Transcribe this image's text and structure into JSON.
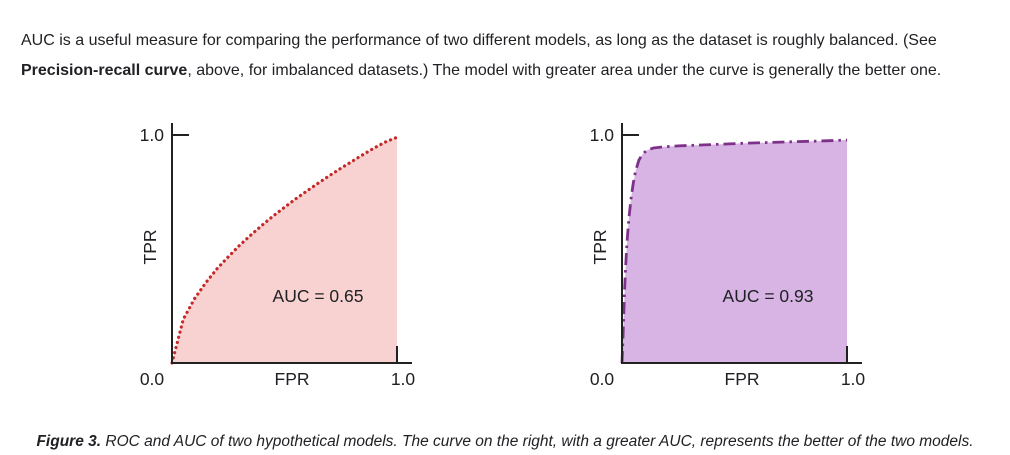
{
  "intro": {
    "line1": "AUC is a useful measure for comparing the performance of two different models, as long as the dataset is roughly balanced. (See",
    "line2_bold": "Precision-recall curve",
    "line2_rest": ", above, for imbalanced datasets.) The model with greater area under the curve is generally the better one."
  },
  "caption": {
    "label": "Figure 3.",
    "text": " ROC and AUC of two hypothetical models. The curve on the right, with a greater AUC, represents the better of the two models."
  },
  "colors": {
    "axis": "#212121",
    "text": "#202124",
    "left_curve": "#c62828",
    "left_fill": "#f8d2d0",
    "right_curve": "#7d3189",
    "right_fill": "#d7b4e4"
  },
  "chart_data": [
    {
      "type": "area",
      "title": "",
      "xlabel": "FPR",
      "ylabel": "TPR",
      "xlim": [
        0.0,
        1.0
      ],
      "ylim": [
        0.0,
        1.0
      ],
      "grid": false,
      "x_ticks": [
        {
          "value": 0.0,
          "label": "0.0"
        },
        {
          "value": 1.0,
          "label": "1.0"
        }
      ],
      "y_ticks": [
        {
          "value": 1.0,
          "label": "1.0"
        }
      ],
      "annotation": "AUC = 0.65",
      "auc": 0.65,
      "line_style": "dotted",
      "line_color": "#c62828",
      "fill_color": "#f8d2d0",
      "points": [
        [
          0.0,
          0.0
        ],
        [
          0.05,
          0.192
        ],
        [
          0.1,
          0.282
        ],
        [
          0.15,
          0.352
        ],
        [
          0.2,
          0.413
        ],
        [
          0.25,
          0.466
        ],
        [
          0.3,
          0.516
        ],
        [
          0.35,
          0.561
        ],
        [
          0.4,
          0.604
        ],
        [
          0.45,
          0.645
        ],
        [
          0.5,
          0.683
        ],
        [
          0.55,
          0.72
        ],
        [
          0.6,
          0.755
        ],
        [
          0.65,
          0.789
        ],
        [
          0.7,
          0.822
        ],
        [
          0.75,
          0.854
        ],
        [
          0.8,
          0.884
        ],
        [
          0.85,
          0.915
        ],
        [
          0.9,
          0.944
        ],
        [
          0.95,
          0.97
        ],
        [
          1.0,
          0.99
        ]
      ]
    },
    {
      "type": "area",
      "title": "",
      "xlabel": "FPR",
      "ylabel": "TPR",
      "xlim": [
        0.0,
        1.0
      ],
      "ylim": [
        0.0,
        1.0
      ],
      "grid": false,
      "x_ticks": [
        {
          "value": 0.0,
          "label": "0.0"
        },
        {
          "value": 1.0,
          "label": "1.0"
        }
      ],
      "y_ticks": [
        {
          "value": 1.0,
          "label": "1.0"
        }
      ],
      "annotation": "AUC = 0.93",
      "auc": 0.93,
      "line_style": "dash-dot",
      "line_color": "#7d3189",
      "fill_color": "#d7b4e4",
      "points": [
        [
          0.0,
          0.0
        ],
        [
          0.004,
          0.1
        ],
        [
          0.008,
          0.22
        ],
        [
          0.012,
          0.33
        ],
        [
          0.016,
          0.42
        ],
        [
          0.022,
          0.53
        ],
        [
          0.03,
          0.63
        ],
        [
          0.04,
          0.72
        ],
        [
          0.05,
          0.79
        ],
        [
          0.06,
          0.84
        ],
        [
          0.075,
          0.89
        ],
        [
          0.09,
          0.915
        ],
        [
          0.11,
          0.933
        ],
        [
          0.14,
          0.943
        ],
        [
          0.18,
          0.948
        ],
        [
          0.25,
          0.952
        ],
        [
          0.35,
          0.956
        ],
        [
          0.45,
          0.96
        ],
        [
          0.55,
          0.964
        ],
        [
          0.65,
          0.967
        ],
        [
          0.75,
          0.97
        ],
        [
          0.85,
          0.973
        ],
        [
          0.95,
          0.976
        ],
        [
          1.0,
          0.978
        ]
      ]
    }
  ]
}
